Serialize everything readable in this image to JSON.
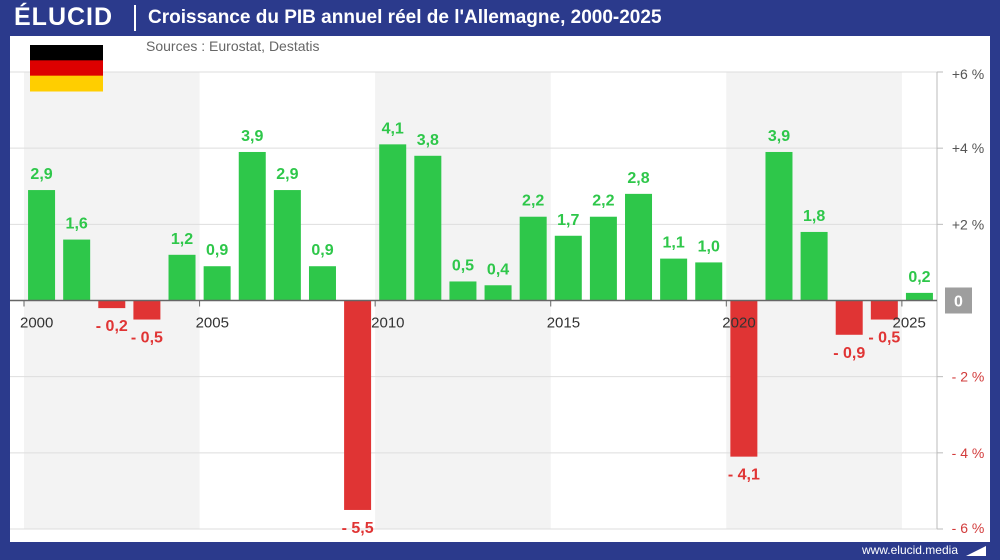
{
  "header": {
    "logo": "ÉLUCID",
    "title": "Croissance du PIB annuel réel de l'Allemagne, 2000-2025"
  },
  "sources": "Sources : Eurostat, Destatis",
  "footer": {
    "url": "www.elucid.media"
  },
  "colors": {
    "positive": "#2ec74a",
    "negative": "#e03434",
    "brand": "#2b3a8c",
    "band": "#f3f3f3",
    "zero_badge": "#9e9e9e"
  },
  "flag": {
    "name": "germany-flag-icon",
    "colors": [
      "#000000",
      "#dd0000",
      "#ffce00"
    ]
  },
  "chart_data": {
    "type": "bar",
    "title": "Croissance du PIB annuel réel de l'Allemagne, 2000-2025",
    "categories": [
      2000,
      2001,
      2002,
      2003,
      2004,
      2005,
      2006,
      2007,
      2008,
      2009,
      2010,
      2011,
      2012,
      2013,
      2014,
      2015,
      2016,
      2017,
      2018,
      2019,
      2020,
      2021,
      2022,
      2023,
      2024,
      2025
    ],
    "values": [
      2.9,
      1.6,
      -0.2,
      -0.5,
      1.2,
      0.9,
      3.9,
      2.9,
      0.9,
      -5.5,
      4.1,
      3.8,
      0.5,
      0.4,
      2.2,
      1.7,
      2.2,
      2.8,
      1.1,
      1.0,
      -4.1,
      3.9,
      1.8,
      -0.9,
      -0.5,
      0.2
    ],
    "value_labels": [
      "2,9",
      "1,6",
      "- 0,2",
      "- 0,5",
      "1,2",
      "0,9",
      "3,9",
      "2,9",
      "0,9",
      "- 5,5",
      "4,1",
      "3,8",
      "0,5",
      "0,4",
      "2,2",
      "1,7",
      "2,2",
      "2,8",
      "1,1",
      "1,0",
      "- 4,1",
      "3,9",
      "1,8",
      "- 0,9",
      "- 0,5",
      "0,2"
    ],
    "x_tick_labels": [
      "2000",
      "2005",
      "2010",
      "2015",
      "2020",
      "2025"
    ],
    "x_tick_years": [
      2000,
      2005,
      2010,
      2015,
      2020,
      2025
    ],
    "y_ticks": [
      6,
      4,
      2,
      0,
      -2,
      -4,
      -6
    ],
    "y_tick_labels": [
      "+6 %",
      "+4 %",
      "+2 %",
      "0",
      "- 2 %",
      "- 4 %",
      "- 6 %"
    ],
    "ylim": [
      -6,
      6
    ],
    "y_axis_side": "right",
    "grid": true,
    "xlabel": "",
    "ylabel": ""
  }
}
